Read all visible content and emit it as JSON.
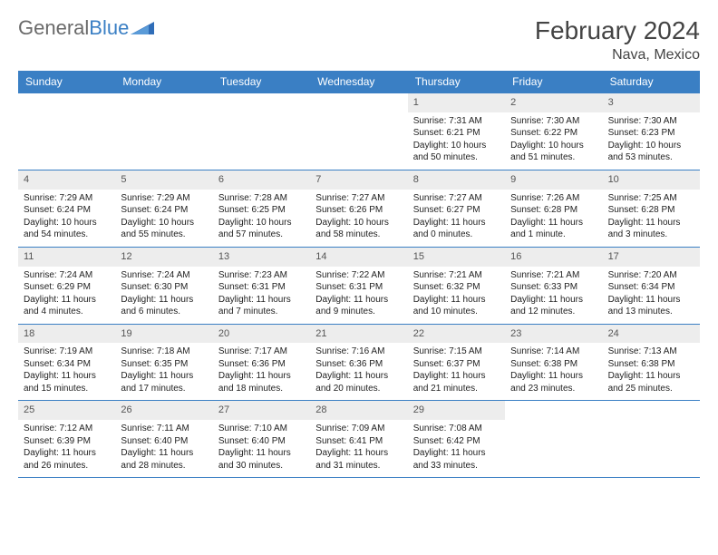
{
  "brand": {
    "part1": "General",
    "part2": "Blue"
  },
  "title": "February 2024",
  "location": "Nava, Mexico",
  "dayNames": [
    "Sunday",
    "Monday",
    "Tuesday",
    "Wednesday",
    "Thursday",
    "Friday",
    "Saturday"
  ],
  "colors": {
    "headerBlue": "#3a7fc4",
    "cellNumBg": "#ededed",
    "text": "#222222",
    "brandGray": "#6a6a6a"
  },
  "weeks": [
    [
      {
        "n": "",
        "sr": "",
        "ss": "",
        "dl": ""
      },
      {
        "n": "",
        "sr": "",
        "ss": "",
        "dl": ""
      },
      {
        "n": "",
        "sr": "",
        "ss": "",
        "dl": ""
      },
      {
        "n": "",
        "sr": "",
        "ss": "",
        "dl": ""
      },
      {
        "n": "1",
        "sr": "Sunrise: 7:31 AM",
        "ss": "Sunset: 6:21 PM",
        "dl": "Daylight: 10 hours and 50 minutes."
      },
      {
        "n": "2",
        "sr": "Sunrise: 7:30 AM",
        "ss": "Sunset: 6:22 PM",
        "dl": "Daylight: 10 hours and 51 minutes."
      },
      {
        "n": "3",
        "sr": "Sunrise: 7:30 AM",
        "ss": "Sunset: 6:23 PM",
        "dl": "Daylight: 10 hours and 53 minutes."
      }
    ],
    [
      {
        "n": "4",
        "sr": "Sunrise: 7:29 AM",
        "ss": "Sunset: 6:24 PM",
        "dl": "Daylight: 10 hours and 54 minutes."
      },
      {
        "n": "5",
        "sr": "Sunrise: 7:29 AM",
        "ss": "Sunset: 6:24 PM",
        "dl": "Daylight: 10 hours and 55 minutes."
      },
      {
        "n": "6",
        "sr": "Sunrise: 7:28 AM",
        "ss": "Sunset: 6:25 PM",
        "dl": "Daylight: 10 hours and 57 minutes."
      },
      {
        "n": "7",
        "sr": "Sunrise: 7:27 AM",
        "ss": "Sunset: 6:26 PM",
        "dl": "Daylight: 10 hours and 58 minutes."
      },
      {
        "n": "8",
        "sr": "Sunrise: 7:27 AM",
        "ss": "Sunset: 6:27 PM",
        "dl": "Daylight: 11 hours and 0 minutes."
      },
      {
        "n": "9",
        "sr": "Sunrise: 7:26 AM",
        "ss": "Sunset: 6:28 PM",
        "dl": "Daylight: 11 hours and 1 minute."
      },
      {
        "n": "10",
        "sr": "Sunrise: 7:25 AM",
        "ss": "Sunset: 6:28 PM",
        "dl": "Daylight: 11 hours and 3 minutes."
      }
    ],
    [
      {
        "n": "11",
        "sr": "Sunrise: 7:24 AM",
        "ss": "Sunset: 6:29 PM",
        "dl": "Daylight: 11 hours and 4 minutes."
      },
      {
        "n": "12",
        "sr": "Sunrise: 7:24 AM",
        "ss": "Sunset: 6:30 PM",
        "dl": "Daylight: 11 hours and 6 minutes."
      },
      {
        "n": "13",
        "sr": "Sunrise: 7:23 AM",
        "ss": "Sunset: 6:31 PM",
        "dl": "Daylight: 11 hours and 7 minutes."
      },
      {
        "n": "14",
        "sr": "Sunrise: 7:22 AM",
        "ss": "Sunset: 6:31 PM",
        "dl": "Daylight: 11 hours and 9 minutes."
      },
      {
        "n": "15",
        "sr": "Sunrise: 7:21 AM",
        "ss": "Sunset: 6:32 PM",
        "dl": "Daylight: 11 hours and 10 minutes."
      },
      {
        "n": "16",
        "sr": "Sunrise: 7:21 AM",
        "ss": "Sunset: 6:33 PM",
        "dl": "Daylight: 11 hours and 12 minutes."
      },
      {
        "n": "17",
        "sr": "Sunrise: 7:20 AM",
        "ss": "Sunset: 6:34 PM",
        "dl": "Daylight: 11 hours and 13 minutes."
      }
    ],
    [
      {
        "n": "18",
        "sr": "Sunrise: 7:19 AM",
        "ss": "Sunset: 6:34 PM",
        "dl": "Daylight: 11 hours and 15 minutes."
      },
      {
        "n": "19",
        "sr": "Sunrise: 7:18 AM",
        "ss": "Sunset: 6:35 PM",
        "dl": "Daylight: 11 hours and 17 minutes."
      },
      {
        "n": "20",
        "sr": "Sunrise: 7:17 AM",
        "ss": "Sunset: 6:36 PM",
        "dl": "Daylight: 11 hours and 18 minutes."
      },
      {
        "n": "21",
        "sr": "Sunrise: 7:16 AM",
        "ss": "Sunset: 6:36 PM",
        "dl": "Daylight: 11 hours and 20 minutes."
      },
      {
        "n": "22",
        "sr": "Sunrise: 7:15 AM",
        "ss": "Sunset: 6:37 PM",
        "dl": "Daylight: 11 hours and 21 minutes."
      },
      {
        "n": "23",
        "sr": "Sunrise: 7:14 AM",
        "ss": "Sunset: 6:38 PM",
        "dl": "Daylight: 11 hours and 23 minutes."
      },
      {
        "n": "24",
        "sr": "Sunrise: 7:13 AM",
        "ss": "Sunset: 6:38 PM",
        "dl": "Daylight: 11 hours and 25 minutes."
      }
    ],
    [
      {
        "n": "25",
        "sr": "Sunrise: 7:12 AM",
        "ss": "Sunset: 6:39 PM",
        "dl": "Daylight: 11 hours and 26 minutes."
      },
      {
        "n": "26",
        "sr": "Sunrise: 7:11 AM",
        "ss": "Sunset: 6:40 PM",
        "dl": "Daylight: 11 hours and 28 minutes."
      },
      {
        "n": "27",
        "sr": "Sunrise: 7:10 AM",
        "ss": "Sunset: 6:40 PM",
        "dl": "Daylight: 11 hours and 30 minutes."
      },
      {
        "n": "28",
        "sr": "Sunrise: 7:09 AM",
        "ss": "Sunset: 6:41 PM",
        "dl": "Daylight: 11 hours and 31 minutes."
      },
      {
        "n": "29",
        "sr": "Sunrise: 7:08 AM",
        "ss": "Sunset: 6:42 PM",
        "dl": "Daylight: 11 hours and 33 minutes."
      },
      {
        "n": "",
        "sr": "",
        "ss": "",
        "dl": ""
      },
      {
        "n": "",
        "sr": "",
        "ss": "",
        "dl": ""
      }
    ]
  ]
}
